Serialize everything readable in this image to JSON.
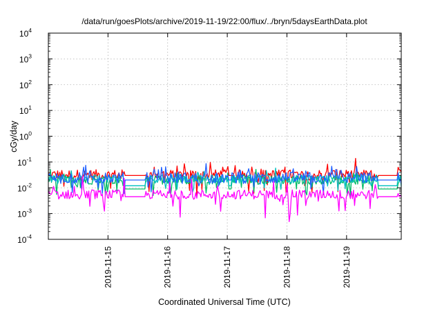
{
  "chart_data": {
    "type": "line",
    "title": "/data/run/goesPlots/archive/2019-11-19/22:00/flux/../bryn/5daysEarthData.plot",
    "xlabel": "Coordinated Universal Time (UTC)",
    "ylabel": "cGy/day",
    "yscale": "log",
    "ylim": [
      0.0001,
      10000
    ],
    "y_ticks": [
      {
        "base": "10",
        "exp": "4"
      },
      {
        "base": "10",
        "exp": "3"
      },
      {
        "base": "10",
        "exp": "2"
      },
      {
        "base": "10",
        "exp": "1"
      },
      {
        "base": "10",
        "exp": "0"
      },
      {
        "base": "10",
        "exp": "-1"
      },
      {
        "base": "10",
        "exp": "-2"
      },
      {
        "base": "10",
        "exp": "-3"
      },
      {
        "base": "10",
        "exp": "-4"
      }
    ],
    "xlim": [
      "2019-11-14 00:00",
      "2019-11-19 22:00"
    ],
    "x_ticks": [
      "2019-11-15",
      "2019-11-16",
      "2019-11-17",
      "2019-11-18",
      "2019-11-19"
    ],
    "grid": true,
    "legend": "none",
    "series": [
      {
        "color": "#ff0000",
        "base": 0.032,
        "spread": 0.2,
        "spikes": 0.65,
        "fill": 0.03
      },
      {
        "color": "#00bb66",
        "base": 0.02,
        "spread": 0.17,
        "spikes": 0.45,
        "fill": 0.009
      },
      {
        "color": "#00c0c0",
        "base": 0.022,
        "spread": 0.16,
        "spikes": 0.4,
        "fill": 0.012
      },
      {
        "color": "#2060ff",
        "base": 0.024,
        "spread": 0.22,
        "spikes": 0.55,
        "fill": 0.02
      },
      {
        "color": "#ff00ff",
        "base": 0.0055,
        "spread": 0.18,
        "spikes": 0.85,
        "fill": 0.0045
      }
    ]
  }
}
